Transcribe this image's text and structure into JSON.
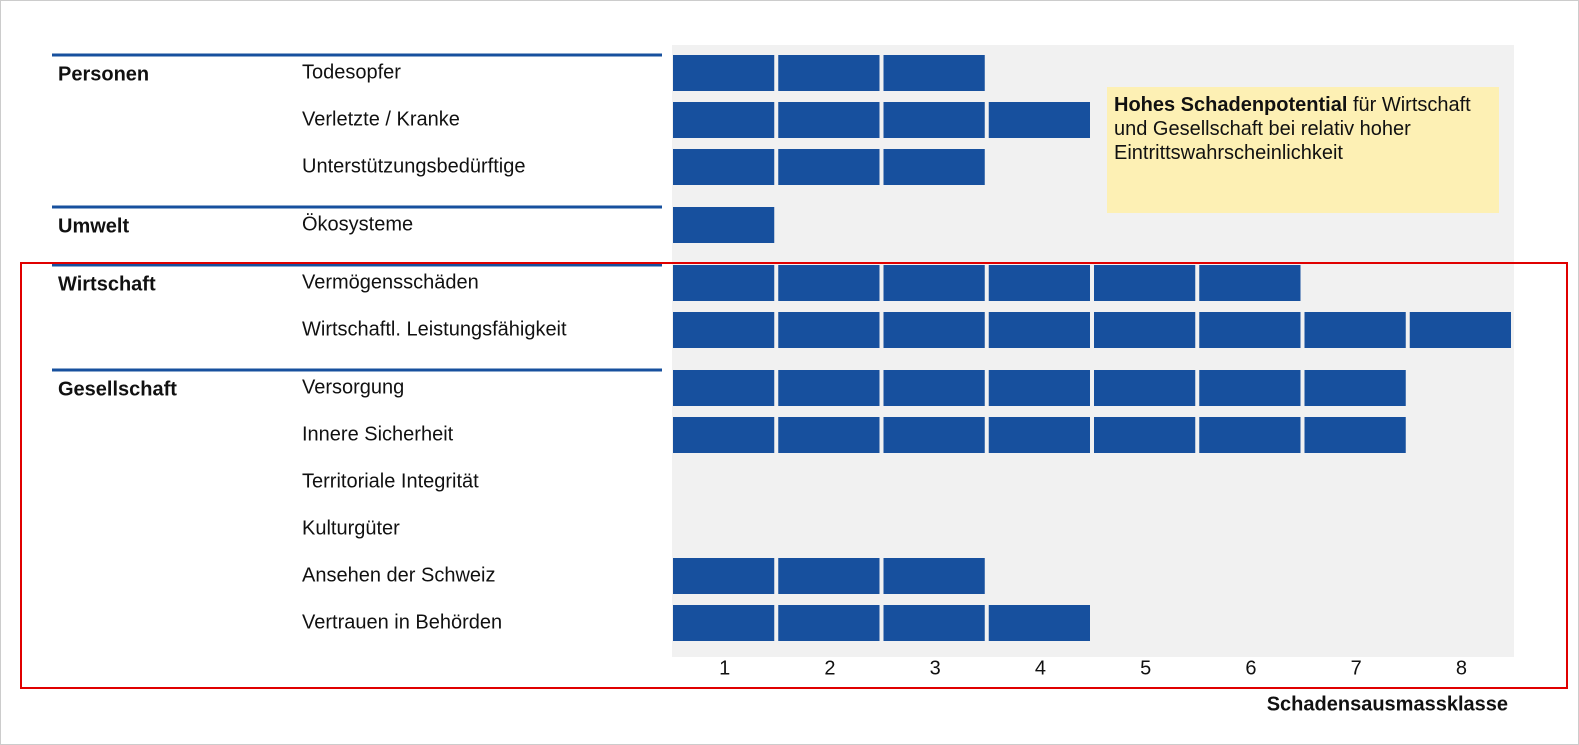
{
  "chart_data": {
    "type": "segmented-bar",
    "groups": [
      {
        "name": "Personen",
        "categories": [
          "Todesopfer",
          "Verletzte / Kranke",
          "Unterstützungsbedürftige"
        ],
        "values": [
          3,
          4,
          3
        ]
      },
      {
        "name": "Umwelt",
        "categories": [
          "Ökosysteme"
        ],
        "values": [
          1
        ]
      },
      {
        "name": "Wirtschaft",
        "categories": [
          "Vermögensschäden",
          "Wirtschaftl. Leistungsfähigkeit"
        ],
        "values": [
          6,
          8
        ]
      },
      {
        "name": "Gesellschaft",
        "categories": [
          "Versorgung",
          "Innere Sicherheit",
          "Territoriale Integrität",
          "Kulturgüter",
          "Ansehen der Schweiz",
          "Vertrauen in Behörden"
        ],
        "values": [
          7,
          7,
          0,
          0,
          3,
          4
        ]
      }
    ],
    "color": "#17509e",
    "xlim": [
      0,
      8
    ],
    "xticks": [
      1,
      2,
      3,
      4,
      5,
      6,
      7,
      8
    ],
    "xlabel": "Schadensausmassklasse",
    "annotation": {
      "bold": "Hohes Schadenpotential",
      "text": "für Wirtschaft und Gesellschaft bei relativ hoher Eintrittswahrscheinlichkeit"
    }
  }
}
